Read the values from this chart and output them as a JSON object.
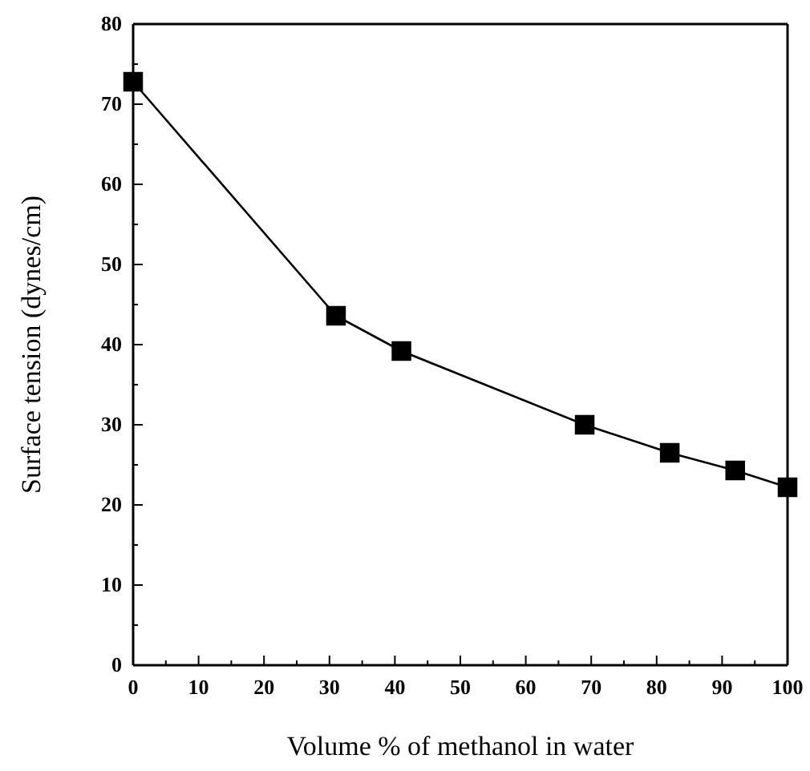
{
  "chart_data": {
    "type": "line",
    "xlabel": "Volume % of methanol in water",
    "ylabel": "Surface tension (dynes/cm)",
    "x": [
      0,
      31,
      41,
      69,
      82,
      92,
      100
    ],
    "series": [
      {
        "color": "#000000",
        "values": [
          72.8,
          43.6,
          39.2,
          30,
          26.5,
          24.3,
          22.2
        ]
      }
    ],
    "marker": "square",
    "line_style": "solid",
    "grid": false,
    "xlim": [
      0,
      100
    ],
    "ylim": [
      0,
      80
    ],
    "xticks": [
      0,
      {
        "value": 5,
        "label": null
      },
      10,
      {
        "value": 15,
        "label": null
      },
      20,
      {
        "value": 25,
        "label": null
      },
      30,
      {
        "value": 35,
        "label": null
      },
      40,
      {
        "value": 45,
        "label": null
      },
      50,
      {
        "value": 55,
        "label": null
      },
      60,
      {
        "value": 65,
        "label": null
      },
      70,
      {
        "value": 75,
        "label": null
      },
      80,
      {
        "value": 85,
        "label": null
      },
      90,
      {
        "value": 95,
        "label": null
      },
      100
    ],
    "yticks": [
      0,
      {
        "value": 5,
        "label": null
      },
      10,
      {
        "value": 15,
        "label": null
      },
      20,
      {
        "value": 25,
        "label": null
      },
      30,
      {
        "value": 35,
        "label": null
      },
      40,
      {
        "value": 45,
        "label": null
      },
      50,
      {
        "value": 55,
        "label": null
      },
      60,
      {
        "value": 65,
        "label": null
      },
      70,
      {
        "value": 75,
        "label": null
      },
      80
    ]
  }
}
